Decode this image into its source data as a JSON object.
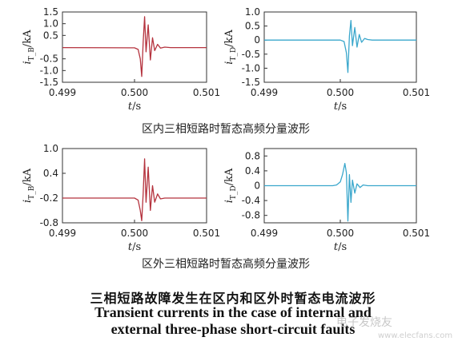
{
  "chart_data": [
    {
      "type": "line",
      "panel": "top-left",
      "ylabel": "i_{T_B}/kA",
      "xlabel": "t/s",
      "xlim": [
        0.499,
        0.501
      ],
      "ylim": [
        -1.5,
        1.5
      ],
      "xticks": [
        "0.499",
        "0.500",
        "0.501"
      ],
      "yticks": [
        "1.5",
        "1.0",
        "0.5",
        "-0.5",
        "-1.0",
        "-1.5"
      ],
      "ytick_values": [
        1.5,
        1.0,
        0.5,
        -0.5,
        -1.0,
        -1.5
      ],
      "color": "#b5333e",
      "series": [
        {
          "x": [
            0.499,
            0.49995,
            0.5,
            0.50005,
            0.50008,
            0.5001,
            0.50012,
            0.50014,
            0.50016,
            0.50019,
            0.50022,
            0.50025,
            0.50028,
            0.50032,
            0.50036,
            0.50042,
            0.5005,
            0.501
          ],
          "y": [
            -0.02,
            -0.03,
            -0.03,
            -0.1,
            -0.5,
            -1.25,
            0.2,
            1.3,
            -0.2,
            0.95,
            -0.55,
            0.4,
            -0.15,
            0.12,
            -0.04,
            0.0,
            -0.02,
            -0.02
          ]
        }
      ]
    },
    {
      "type": "line",
      "panel": "top-right",
      "ylabel": "i_{T_D}/kA",
      "xlabel": "t/s",
      "xlim": [
        0.499,
        0.501
      ],
      "ylim": [
        -1.5,
        1.0
      ],
      "xticks": [
        "0.499",
        "0.500",
        "0.501"
      ],
      "yticks": [
        "1.0",
        "0.5",
        "0",
        "-0.5",
        "-1.0",
        "-1.5"
      ],
      "ytick_values": [
        1.0,
        0.5,
        0,
        -0.5,
        -1.0,
        -1.5
      ],
      "color": "#3aa7cc",
      "series": [
        {
          "x": [
            0.499,
            0.49995,
            0.5,
            0.50005,
            0.50008,
            0.5001,
            0.50012,
            0.50014,
            0.50016,
            0.50019,
            0.50022,
            0.50025,
            0.50028,
            0.50032,
            0.50036,
            0.50042,
            0.5005,
            0.501
          ],
          "y": [
            0.0,
            0.0,
            0.0,
            -0.05,
            -0.45,
            -1.15,
            0.15,
            0.7,
            -0.2,
            0.45,
            -0.25,
            0.2,
            -0.08,
            0.06,
            0.02,
            0.0,
            0.0,
            0.0
          ]
        }
      ]
    },
    {
      "type": "line",
      "panel": "bottom-left",
      "ylabel": "i_{T_B}/kA",
      "xlabel": "t/s",
      "xlim": [
        0.499,
        0.501
      ],
      "ylim": [
        -0.8,
        1.0
      ],
      "xticks": [
        "0.499",
        "0.500",
        "0.501"
      ],
      "yticks": [
        "1.0",
        "0.4",
        "-0.2",
        "-0.8"
      ],
      "ytick_values": [
        1.0,
        0.4,
        -0.2,
        -0.8
      ],
      "color": "#b5333e",
      "series": [
        {
          "x": [
            0.499,
            0.49995,
            0.5,
            0.50005,
            0.50008,
            0.5001,
            0.50012,
            0.50014,
            0.50016,
            0.50019,
            0.50022,
            0.50025,
            0.50028,
            0.50032,
            0.50036,
            0.50042,
            0.5005,
            0.501
          ],
          "y": [
            -0.2,
            -0.2,
            -0.2,
            -0.25,
            -0.5,
            -0.75,
            -0.1,
            0.75,
            -0.3,
            0.55,
            -0.5,
            0.1,
            -0.3,
            -0.1,
            -0.22,
            -0.2,
            -0.2,
            -0.2
          ]
        }
      ]
    },
    {
      "type": "line",
      "panel": "bottom-right",
      "ylabel": "i_{T_D}/kA",
      "xlabel": "t/s",
      "xlim": [
        0.499,
        0.501
      ],
      "ylim": [
        -1.0,
        1.0
      ],
      "xticks": [
        "0.499",
        "0.500",
        "0.501"
      ],
      "yticks": [
        "0.8",
        "0.4",
        "0",
        "-0.4",
        "-0.8"
      ],
      "ytick_values": [
        0.8,
        0.4,
        0,
        -0.4,
        -0.8
      ],
      "color": "#3aa7cc",
      "series": [
        {
          "x": [
            0.499,
            0.4999,
            0.49995,
            0.5,
            0.50003,
            0.50006,
            0.50008,
            0.5001,
            0.50012,
            0.50014,
            0.50016,
            0.50019,
            0.50022,
            0.50026,
            0.5003,
            0.50036,
            0.50045,
            0.501
          ],
          "y": [
            0.0,
            0.0,
            0.02,
            0.1,
            0.3,
            0.6,
            0.35,
            -0.95,
            0.3,
            -0.45,
            0.15,
            -0.2,
            0.05,
            -0.05,
            0.02,
            0.0,
            0.0,
            0.0
          ]
        }
      ]
    }
  ],
  "captions": {
    "internal_cn": "区内三相短路时暂态高频分量波形",
    "external_cn": "区外三相短路时暂态高频分量波形",
    "title_cn": "三相短路故障发生在区内和区外时暂态电流波形",
    "title_en_line1": "Transient currents in the case of internal and",
    "title_en_line2": "external three-phase short-circuit faults"
  },
  "watermark": {
    "text": "电子发烧友",
    "url": "www.elecfans.com"
  }
}
